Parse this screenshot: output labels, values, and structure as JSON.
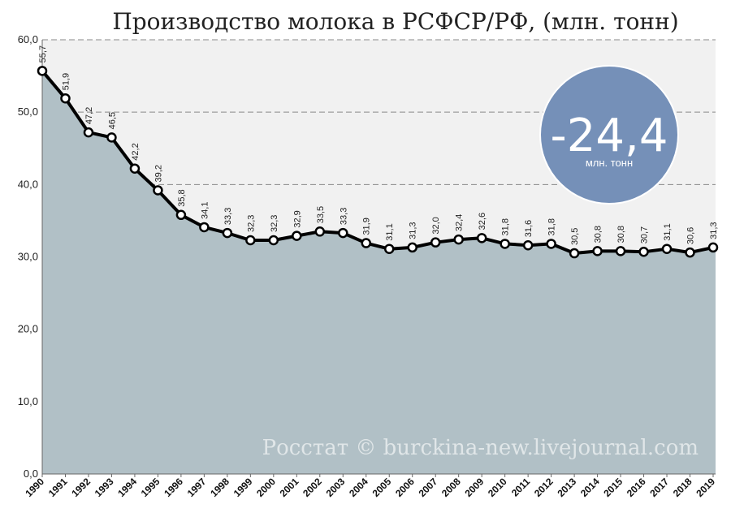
{
  "chart_data": {
    "type": "area",
    "title": "Производство молока в РСФСР/РФ, (млн. тонн)",
    "xlabel": "",
    "ylabel": "",
    "categories": [
      "1990",
      "1991",
      "1992",
      "1993",
      "1994",
      "1995",
      "1996",
      "1997",
      "1998",
      "1999",
      "2000",
      "2001",
      "2002",
      "2003",
      "2004",
      "2005",
      "2006",
      "2007",
      "2008",
      "2009",
      "2010",
      "2011",
      "2012",
      "2013",
      "2014",
      "2015",
      "2016",
      "2017",
      "2018",
      "2019"
    ],
    "values": [
      55.7,
      51.9,
      47.2,
      46.5,
      42.2,
      39.2,
      35.8,
      34.1,
      33.3,
      32.3,
      32.3,
      32.9,
      33.5,
      33.3,
      31.9,
      31.1,
      31.3,
      32.0,
      32.4,
      32.6,
      31.8,
      31.6,
      31.8,
      30.5,
      30.8,
      30.8,
      30.7,
      31.1,
      30.6,
      31.3
    ],
    "data_labels": [
      "55,7",
      "51,9",
      "47,2",
      "46,5",
      "42,2",
      "39,2",
      "35,8",
      "34,1",
      "33,3",
      "32,3",
      "32,3",
      "32,9",
      "33,5",
      "33,3",
      "31,9",
      "31,1",
      "31,3",
      "32,0",
      "32,4",
      "32,6",
      "31,8",
      "31,6",
      "31,8",
      "30,5",
      "30,8",
      "30,8",
      "30,7",
      "31,1",
      "30,6",
      "31,3"
    ],
    "ylim": [
      0,
      60
    ],
    "yticks": [
      0,
      10,
      20,
      30,
      40,
      50,
      60
    ],
    "ytick_labels": [
      "0,0",
      "10,0",
      "20,0",
      "30,0",
      "40,0",
      "50,0",
      "60,0"
    ],
    "grid": true,
    "colors": {
      "area_fill": "#b1c0c6",
      "plot_background": "#f1f1f1",
      "line": "#000000",
      "marker_fill": "#ffffff",
      "gridline": "#8a8a8a",
      "badge": "#7590b8"
    }
  },
  "badge": {
    "value": "-24,4",
    "unit": "млн. тонн"
  },
  "watermark": "Росстат © burckina-new.livejournal.com"
}
